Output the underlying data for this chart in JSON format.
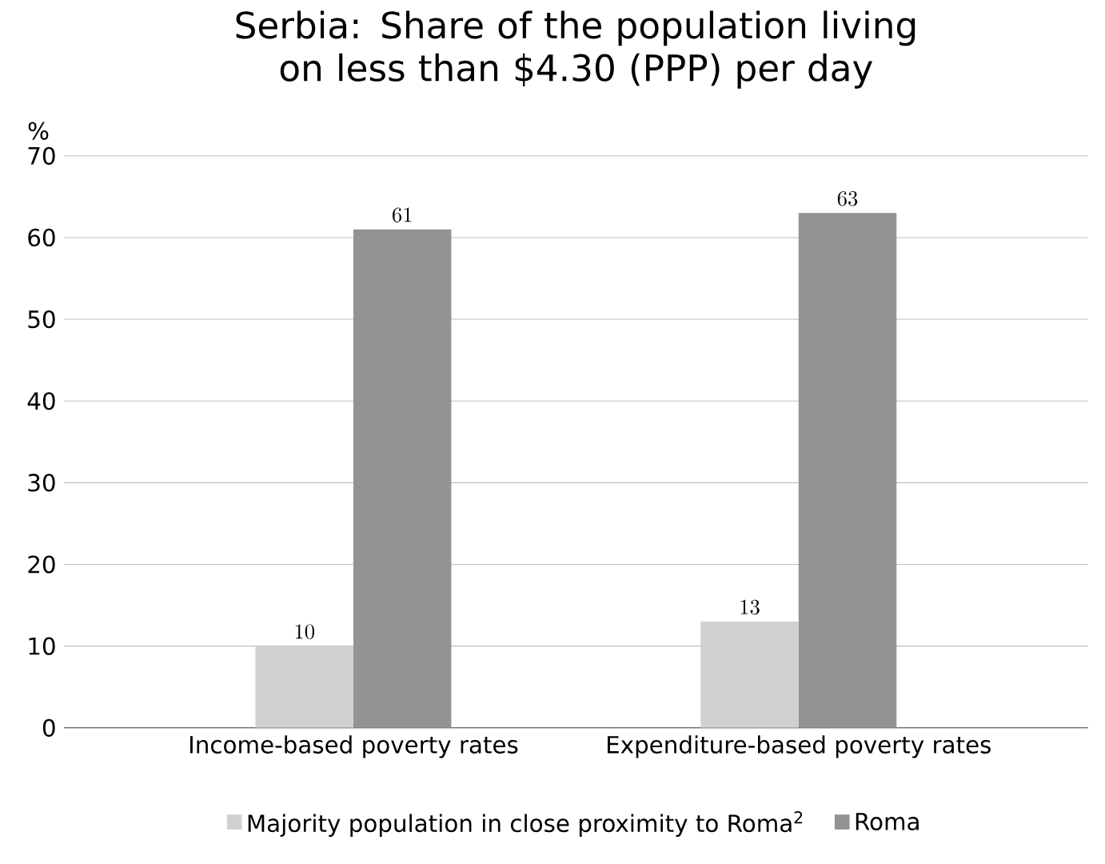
{
  "chart_data": {
    "type": "bar",
    "title": "Serbia: Share of the population living on less than $4.30 (PPP) per day",
    "ylabel": "%",
    "categories": [
      "Income-based poverty rates",
      "Expenditure-based poverty rates"
    ],
    "series": [
      {
        "name": "Majority population in close proximity to Roma$^{2}$",
        "color": "#d1d1d1",
        "values": [
          10,
          13
        ]
      },
      {
        "name": "Roma",
        "color": "#939393",
        "values": [
          61,
          63
        ]
      }
    ],
    "ylim": [
      0,
      70
    ],
    "yticks": [
      0,
      10,
      20,
      30,
      40,
      50,
      60,
      70
    ],
    "grid": "y",
    "legend": "bottom",
    "data_labels": true
  }
}
